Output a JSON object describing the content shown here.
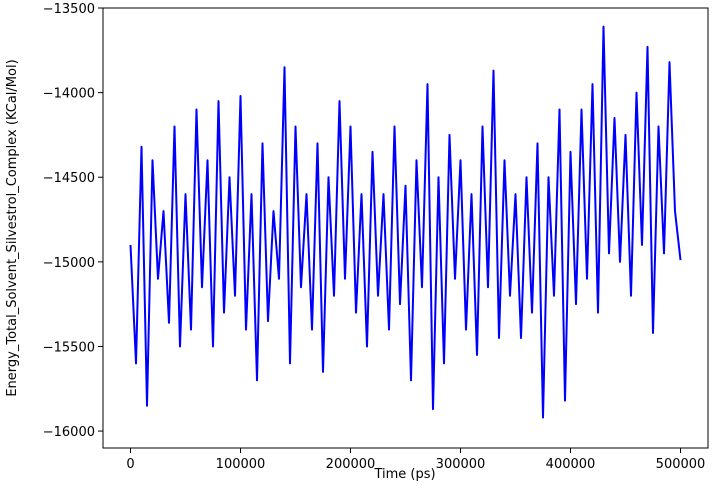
{
  "chart_data": {
    "type": "line",
    "x_label": "Time (ps)",
    "y_label": "Energy_Total_Solvent_Silvestrol_Complex (KCal/Mol)",
    "x": [
      0,
      5000,
      10000,
      15000,
      20000,
      25000,
      30000,
      35000,
      40000,
      45000,
      50000,
      55000,
      60000,
      65000,
      70000,
      75000,
      80000,
      85000,
      90000,
      95000,
      100000,
      105000,
      110000,
      115000,
      120000,
      125000,
      130000,
      135000,
      140000,
      145000,
      150000,
      155000,
      160000,
      165000,
      170000,
      175000,
      180000,
      185000,
      190000,
      195000,
      200000,
      205000,
      210000,
      215000,
      220000,
      225000,
      230000,
      235000,
      240000,
      245000,
      250000,
      255000,
      260000,
      265000,
      270000,
      275000,
      280000,
      285000,
      290000,
      295000,
      300000,
      305000,
      310000,
      315000,
      320000,
      325000,
      330000,
      335000,
      340000,
      345000,
      350000,
      355000,
      360000,
      365000,
      370000,
      375000,
      380000,
      385000,
      390000,
      395000,
      400000,
      405000,
      410000,
      415000,
      420000,
      425000,
      430000,
      435000,
      440000,
      445000,
      450000,
      455000,
      460000,
      465000,
      470000,
      475000,
      480000,
      485000,
      490000,
      495000,
      500000
    ],
    "series": [
      {
        "color": "#0000ff",
        "values": [
          -14900,
          -15600,
          -14320,
          -15850,
          -14400,
          -15100,
          -14700,
          -15360,
          -14200,
          -15500,
          -14600,
          -15400,
          -14100,
          -15150,
          -14400,
          -15500,
          -14050,
          -15300,
          -14500,
          -15200,
          -14020,
          -15400,
          -14600,
          -15700,
          -14300,
          -15350,
          -14700,
          -15100,
          -13850,
          -15600,
          -14200,
          -15150,
          -14600,
          -15400,
          -14300,
          -15650,
          -14500,
          -15200,
          -14050,
          -15100,
          -14200,
          -15300,
          -14600,
          -15500,
          -14350,
          -15200,
          -14600,
          -15400,
          -14200,
          -15250,
          -14550,
          -15700,
          -14400,
          -15150,
          -13950,
          -15870,
          -14500,
          -15600,
          -14250,
          -15100,
          -14400,
          -15400,
          -14600,
          -15550,
          -14200,
          -15150,
          -13870,
          -15450,
          -14400,
          -15200,
          -14600,
          -15450,
          -14500,
          -15300,
          -14300,
          -15920,
          -14500,
          -15200,
          -14100,
          -15820,
          -14350,
          -15250,
          -14100,
          -15100,
          -13950,
          -15300,
          -13610,
          -14950,
          -14150,
          -15000,
          -14250,
          -15200,
          -14000,
          -14900,
          -13730,
          -15420,
          -14200,
          -14950,
          -13820,
          -14700,
          -14990
        ]
      }
    ],
    "xlim": [
      -25000,
      525000
    ],
    "ylim": [
      -16100,
      -13500
    ],
    "xticks": [
      0,
      100000,
      200000,
      300000,
      400000,
      500000
    ],
    "yticks": [
      {
        "value": -16000,
        "label": "−16000"
      },
      {
        "value": -15500,
        "label": "−15500"
      },
      {
        "value": -15000,
        "label": "−15000"
      },
      {
        "value": -14500,
        "label": "−14500"
      },
      {
        "value": -14000,
        "label": "−14000"
      },
      {
        "value": -13500,
        "label": "−13500"
      }
    ]
  }
}
